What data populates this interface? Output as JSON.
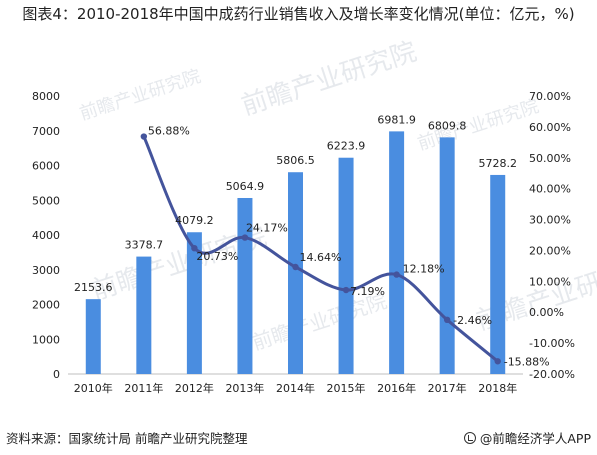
{
  "title": "图表4：2010-2018年中国中成药行业销售收入及增长率变化情况(单位：亿元，%)",
  "footer": {
    "source": "资料来源：国家统计局 前瞻产业研究院整理",
    "brand": "@前瞻经济学人APP"
  },
  "watermark": "前瞻产业研究院",
  "colors": {
    "bar": "#4a8de0",
    "line": "#44549c",
    "text": "#222222"
  },
  "chart_data": {
    "type": "bar+line",
    "title": "图表4：2010-2018年中国中成药行业销售收入及增长率变化情况(单位：亿元，%)",
    "categories": [
      "2010年",
      "2011年",
      "2012年",
      "2013年",
      "2014年",
      "2015年",
      "2016年",
      "2017年",
      "2018年"
    ],
    "series": [
      {
        "type": "bar",
        "axis": "left",
        "values": [
          2153.6,
          3378.7,
          4079.2,
          5064.9,
          5806.5,
          6223.9,
          6981.9,
          6809.8,
          5728.2
        ],
        "labels": [
          "2153.6",
          "3378.7",
          "4079.2",
          "5064.9",
          "5806.5",
          "6223.9",
          "6981.9",
          "6809.8",
          "5728.2"
        ]
      },
      {
        "type": "line",
        "axis": "right",
        "values": [
          null,
          56.88,
          20.73,
          24.17,
          14.64,
          7.19,
          12.18,
          -2.46,
          -15.88
        ],
        "labels": [
          "",
          "56.88%",
          "20.73%",
          "24.17%",
          "14.64%",
          "7.19%",
          "12.18%",
          "-2.46%",
          "-15.88%"
        ]
      }
    ],
    "y_left": {
      "min": 0,
      "max": 8000,
      "ticks": [
        "0",
        "1000",
        "2000",
        "3000",
        "4000",
        "5000",
        "6000",
        "7000",
        "8000"
      ]
    },
    "y_right": {
      "min": -20,
      "max": 70,
      "ticks": [
        "-20.00%",
        "-10.00%",
        "0.00%",
        "10.00%",
        "20.00%",
        "30.00%",
        "40.00%",
        "50.00%",
        "60.00%",
        "70.00%"
      ]
    },
    "grid": false,
    "legend": "none"
  }
}
